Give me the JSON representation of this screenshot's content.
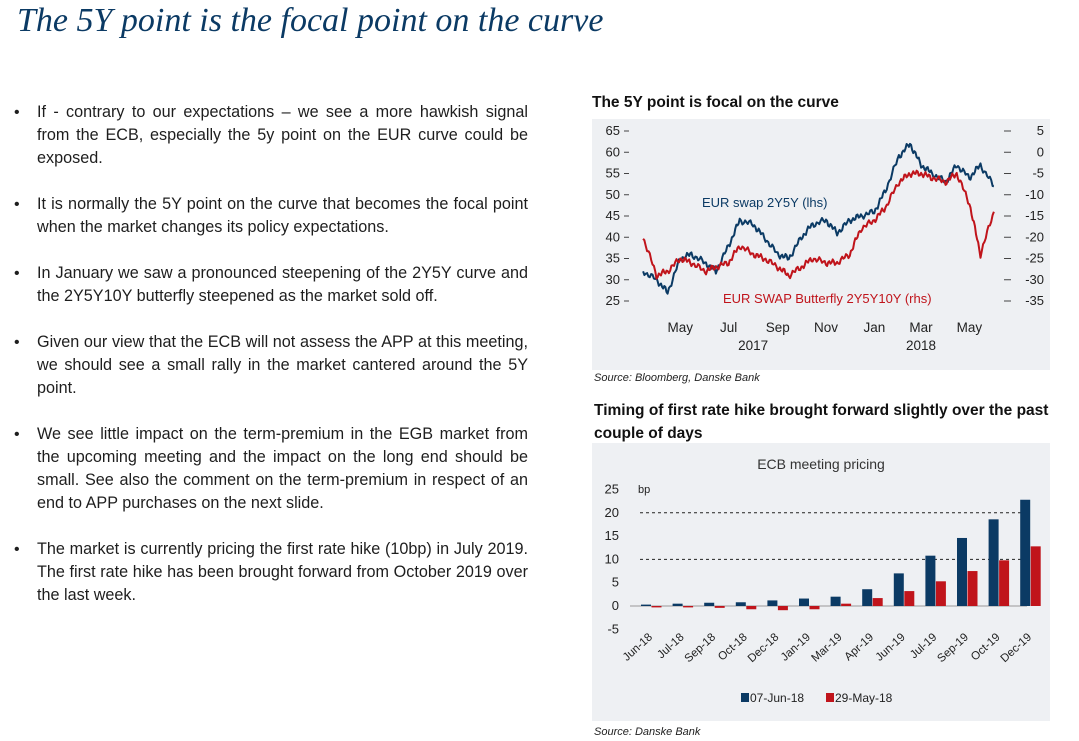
{
  "page_title": "The 5Y point is the focal point on the curve",
  "bullets": [
    "If - contrary to our expectations – we see a more hawkish signal from the ECB, especially the 5y point on the EUR curve could be exposed.",
    "It is normally the 5Y point on the curve that becomes the focal point when the market changes its policy expectations.",
    "In January we saw  a pronounced steepening of the 2Y5Y curve and the 2Y5Y10Y butterfly steepened as the market sold off.",
    "Given our view that the ECB will not assess the APP at this meeting, we should see a small rally in the market cantered around the 5Y point.",
    "We see little impact on the term-premium in the EGB market from the upcoming meeting and the impact on the long end should be small.  See also the comment on the term-premium in respect of an end to APP purchases on the next slide.",
    "The market is currently pricing the first rate hike (10bp) in July 2019. The first rate hike has been brought forward from October 2019 over the last week."
  ],
  "chart1": {
    "title": "The 5Y point is focal on the curve",
    "source": "Source: Bloomberg, Danske Bank",
    "label_left": "EUR swap 2Y5Y (lhs)",
    "label_right": "EUR SWAP Butterfly 2Y5Y10Y (rhs)",
    "x_month_labels": [
      "May",
      "Jul",
      "Sep",
      "Nov",
      "Jan",
      "Mar",
      "May"
    ],
    "x_year_labels": [
      "2017",
      "2018"
    ],
    "left_ticks": [
      "65",
      "60",
      "55",
      "50",
      "45",
      "40",
      "35",
      "30",
      "25"
    ],
    "right_ticks": [
      "5",
      "0",
      "-5",
      "-10",
      "-15",
      "-20",
      "-25",
      "-30",
      "-35"
    ],
    "colors": {
      "lhs": "#0b3a64",
      "rhs": "#c0141b"
    },
    "chart_data": {
      "type": "line",
      "title": "The 5Y point is focal on the curve",
      "x_range": [
        "2017-03",
        "2018-06"
      ],
      "y_left_lim": [
        25,
        65
      ],
      "y_right_lim": [
        -35,
        5
      ],
      "series": [
        {
          "name": "EUR swap 2Y5Y (lhs)",
          "axis": "left",
          "dates": [
            "2017-03-15",
            "2017-04-01",
            "2017-04-15",
            "2017-05-01",
            "2017-05-15",
            "2017-06-01",
            "2017-06-15",
            "2017-07-01",
            "2017-07-15",
            "2017-08-01",
            "2017-08-15",
            "2017-09-01",
            "2017-09-15",
            "2017-10-01",
            "2017-10-15",
            "2017-11-01",
            "2017-11-15",
            "2017-12-01",
            "2017-12-15",
            "2018-01-01",
            "2018-01-15",
            "2018-02-01",
            "2018-02-15",
            "2018-03-01",
            "2018-03-15",
            "2018-04-01",
            "2018-04-15",
            "2018-05-01",
            "2018-05-15",
            "2018-06-01"
          ],
          "values": [
            32,
            30,
            27,
            35,
            36,
            34,
            32,
            38,
            44,
            43,
            40,
            36,
            35,
            40,
            43,
            44,
            41,
            44,
            45,
            46,
            51,
            59,
            62,
            57,
            55,
            53,
            57,
            54,
            57,
            52
          ]
        },
        {
          "name": "EUR SWAP Butterfly 2Y5Y10Y (rhs)",
          "axis": "right",
          "dates": [
            "2017-03-15",
            "2017-04-01",
            "2017-04-15",
            "2017-05-01",
            "2017-05-15",
            "2017-06-01",
            "2017-06-15",
            "2017-07-01",
            "2017-07-15",
            "2017-08-01",
            "2017-08-15",
            "2017-09-01",
            "2017-09-15",
            "2017-10-01",
            "2017-10-15",
            "2017-11-01",
            "2017-11-15",
            "2017-12-01",
            "2017-12-15",
            "2018-01-01",
            "2018-01-15",
            "2018-02-01",
            "2018-02-15",
            "2018-03-01",
            "2018-03-15",
            "2018-04-01",
            "2018-04-15",
            "2018-05-01",
            "2018-05-15",
            "2018-06-01"
          ],
          "values": [
            -20,
            -29,
            -28,
            -25,
            -26,
            -28,
            -27,
            -26,
            -22,
            -24,
            -25,
            -27,
            -29,
            -27,
            -25,
            -26,
            -26,
            -24,
            -18,
            -16,
            -13,
            -7,
            -5,
            -5,
            -6,
            -7,
            -5,
            -12,
            -24,
            -14
          ]
        }
      ]
    }
  },
  "chart2": {
    "title": "Timing of first rate hike brought forward slightly over the past couple of days",
    "inner_title": "ECB meeting pricing",
    "ylabel": "bp",
    "source": "Source: Danske Bank",
    "colors": {
      "series1": "#0b3a64",
      "series2": "#c0141b"
    },
    "chart_data": {
      "type": "bar",
      "title": "ECB meeting pricing",
      "ylabel": "bp",
      "ylim": [
        -5,
        25
      ],
      "yticks": [
        -5,
        0,
        5,
        10,
        15,
        20,
        25
      ],
      "reference_lines": [
        10,
        20
      ],
      "categories": [
        "Jun-18",
        "Jul-18",
        "Sep-18",
        "Oct-18",
        "Dec-18",
        "Jan-19",
        "Mar-19",
        "Apr-19",
        "Jun-19",
        "Jul-19",
        "Sep-19",
        "Oct-19",
        "Dec-19"
      ],
      "series": [
        {
          "name": "07-Jun-18",
          "values": [
            0.3,
            0.5,
            0.7,
            0.8,
            1.2,
            1.6,
            2.0,
            3.6,
            7.0,
            10.8,
            14.6,
            18.6,
            22.8
          ]
        },
        {
          "name": "29-May-18",
          "values": [
            -0.3,
            -0.3,
            -0.4,
            -0.7,
            -0.9,
            -0.7,
            0.5,
            1.7,
            3.2,
            5.3,
            7.5,
            9.8,
            12.8
          ]
        }
      ]
    }
  }
}
